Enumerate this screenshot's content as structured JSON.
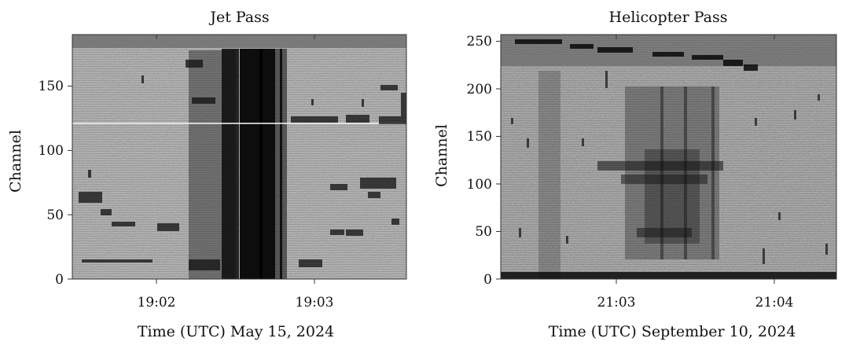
{
  "chart_data": [
    {
      "type": "heatmap",
      "title": "Jet Pass",
      "xlabel": "Time (UTC) May 15, 2024",
      "ylabel": "Channel",
      "ylim": [
        0,
        190
      ],
      "y_ticks": [
        0,
        50,
        100,
        150
      ],
      "y_tick_labels": [
        "0",
        "50",
        "100",
        "150"
      ],
      "x_tick_labels": [
        "19:02",
        "19:03"
      ],
      "colormap": "grayscale",
      "grid": false
    },
    {
      "type": "heatmap",
      "title": "Helicopter Pass",
      "xlabel": "Time (UTC) September 10, 2024",
      "ylabel": "Channel",
      "ylim": [
        0,
        257
      ],
      "y_ticks": [
        0,
        50,
        100,
        150,
        200,
        250
      ],
      "y_tick_labels": [
        "0",
        "50",
        "100",
        "150",
        "200",
        "250"
      ],
      "x_tick_labels": [
        "21:03",
        "21:04"
      ],
      "colormap": "grayscale",
      "grid": false
    }
  ],
  "colors": {
    "background_gray": "#a9a9a9",
    "dark_signal": "#111111",
    "frame": "#444444"
  }
}
